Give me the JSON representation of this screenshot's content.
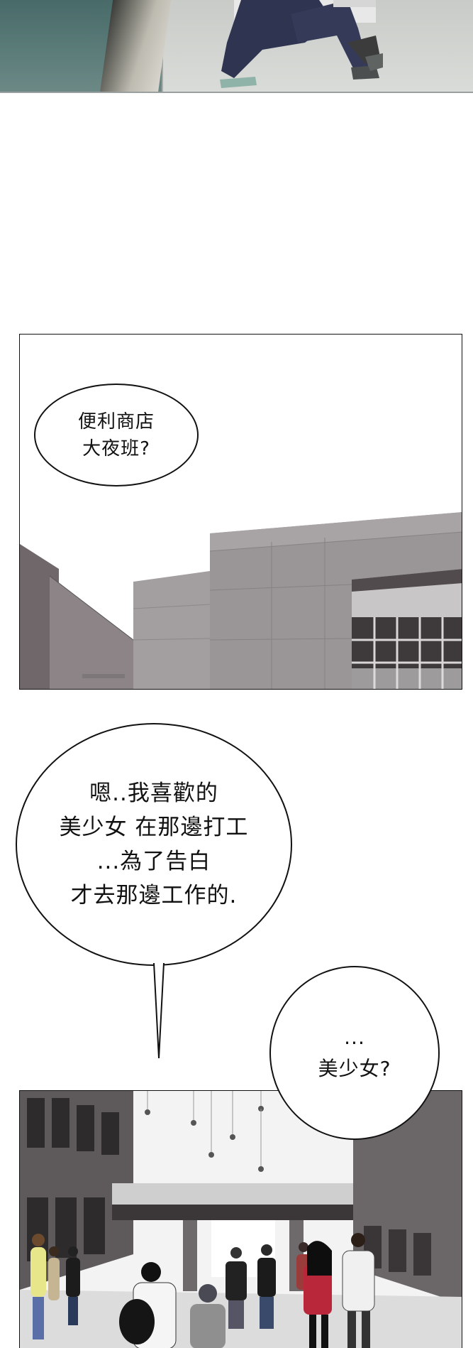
{
  "bubbles": {
    "first": "便利商店\n大夜班?",
    "second": "嗯..我喜歡的\n美少女 在那邊打工\n...為了告白\n才去那邊工作的.",
    "third": "...\n美少女?"
  },
  "colors": {
    "ink": "#111111",
    "background": "#ffffff",
    "water": "#5b7c79",
    "building_gray": "#9a9597"
  }
}
